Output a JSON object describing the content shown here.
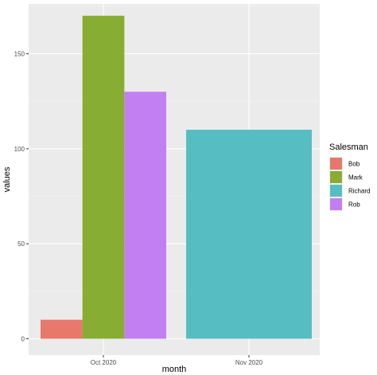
{
  "chart_data": {
    "type": "bar",
    "xlabel": "month",
    "ylabel": "values",
    "categories": [
      "Oct 2020",
      "Nov 2020"
    ],
    "ylim": [
      0,
      170
    ],
    "yticks": [
      0,
      50,
      100,
      150
    ],
    "grid": true,
    "legend": {
      "title": "Salesman",
      "placement": "right",
      "entries": [
        {
          "name": "Bob",
          "color": "#F8766D"
        },
        {
          "name": "Mark",
          "color": "#7CAE00"
        },
        {
          "name": "Richard",
          "color": "#00BFC4"
        },
        {
          "name": "Rob",
          "color": "#C77CFF"
        }
      ]
    },
    "series": [
      {
        "name": "Bob",
        "values": [
          10,
          null
        ]
      },
      {
        "name": "Mark",
        "values": [
          170,
          null
        ]
      },
      {
        "name": "Rob",
        "values": [
          130,
          null
        ]
      },
      {
        "name": "Richard",
        "values": [
          null,
          110
        ]
      }
    ],
    "colors": {
      "panel_background": "#EBEBEB",
      "grid_major": "#FFFFFF",
      "bob": "#E8776C",
      "mark": "#88AD33",
      "richard": "#56BEC3",
      "rob": "#C27FF2"
    }
  }
}
